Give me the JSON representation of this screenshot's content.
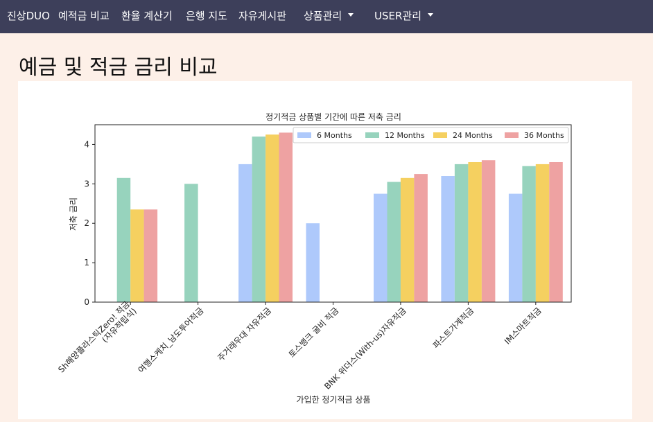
{
  "nav": {
    "brand": "진상DUO",
    "items": [
      "예적금 비교",
      "환율 계산기",
      "은행 지도",
      "자유게시판"
    ],
    "dropdowns": [
      "상품관리",
      "USER관리"
    ]
  },
  "page": {
    "title": "예금 및 적금 금리 비교"
  },
  "colors": {
    "navbar": "#3d3f5a",
    "background": "#fdf0e8",
    "series": [
      "#aec9fb",
      "#97d3bd",
      "#f5d060",
      "#eea2a2"
    ]
  },
  "chart_data": {
    "type": "bar",
    "title": "정기적금 상품별 기간에 따른 저축 금리",
    "xlabel": "가입한 정기적금 상품",
    "ylabel": "저축 금리",
    "ylim": [
      0,
      4.5
    ],
    "yticks": [
      0,
      1,
      2,
      3,
      4
    ],
    "grid": false,
    "legend_position": "top-right",
    "categories": [
      "Sh해양플라스틱Zero! 적금\n(자유적립식)",
      "여행스케치_남도투어적금",
      "주거래우대 자유적금",
      "토스뱅크 굴비 적금",
      "BNK 위더스(With-us)자유적금",
      "파스트가계적금",
      "IM스마트적금"
    ],
    "series": [
      {
        "name": "6 Months",
        "values": [
          null,
          null,
          3.5,
          2.0,
          2.75,
          3.2,
          2.75
        ]
      },
      {
        "name": "12 Months",
        "values": [
          3.15,
          3.0,
          4.2,
          null,
          3.05,
          3.5,
          3.45
        ]
      },
      {
        "name": "24 Months",
        "values": [
          2.35,
          null,
          4.25,
          null,
          3.15,
          3.55,
          3.5
        ]
      },
      {
        "name": "36 Months",
        "values": [
          2.35,
          null,
          4.3,
          null,
          3.25,
          3.6,
          3.55
        ]
      }
    ]
  }
}
